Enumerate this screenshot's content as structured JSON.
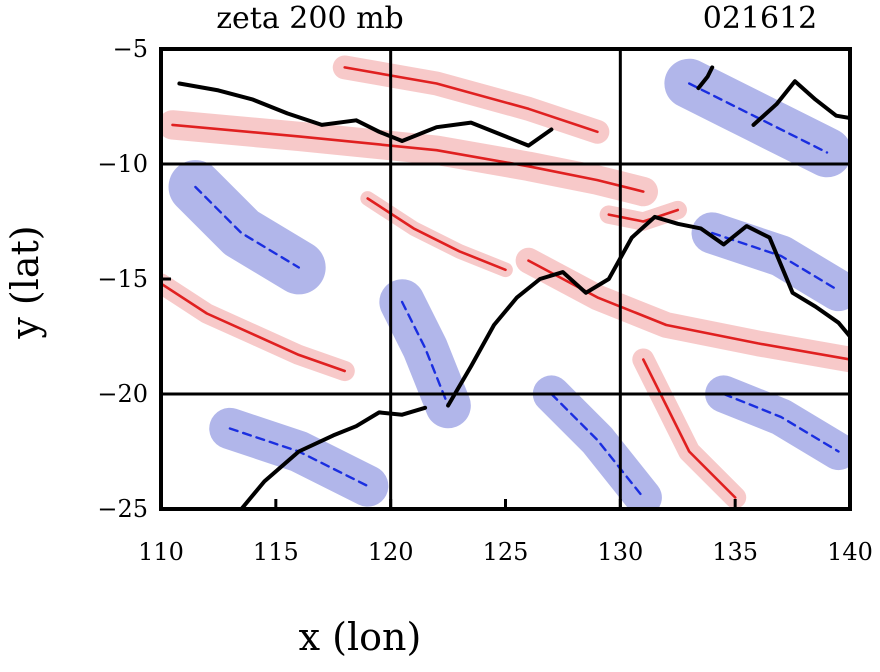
{
  "chart_data": {
    "type": "contour",
    "title": "zeta 200 mb",
    "date_label": "021612",
    "xlabel": "x (lon)",
    "ylabel": "y (lat)",
    "xlim": [
      110,
      140
    ],
    "ylim": [
      -25,
      -5
    ],
    "xticks": [
      110,
      115,
      120,
      125,
      130,
      135,
      140
    ],
    "yticks": [
      -5,
      -10,
      -15,
      -20,
      -25
    ],
    "xtick_labels": [
      "110",
      "115",
      "120",
      "125",
      "130",
      "135",
      "140"
    ],
    "ytick_labels": [
      "−5",
      "−10",
      "−15",
      "−20",
      "−25"
    ],
    "gridlines_lon": [
      120,
      130
    ],
    "gridlines_lat": [
      -10,
      -20
    ],
    "colors": {
      "positive_fill": "#f7c6c6",
      "positive_line": "#e02020",
      "negative_fill": "#aab0e8",
      "negative_line": "#1a2ee0",
      "coastline": "#000000",
      "grid": "#000000"
    },
    "positive_features": [
      {
        "name": "northern-positive-band",
        "lon": [
          110.5,
          116,
          122,
          126,
          129,
          131
        ],
        "lat": [
          -8.3,
          -8.8,
          -9.4,
          -10.1,
          -10.7,
          -11.2
        ],
        "width": 1.6
      },
      {
        "name": "upper-positive-band",
        "lon": [
          118,
          122,
          126,
          129
        ],
        "lat": [
          -5.8,
          -6.5,
          -7.6,
          -8.6
        ],
        "width": 1.3
      },
      {
        "name": "western-positive-band",
        "lon": [
          110,
          112,
          114,
          116,
          118
        ],
        "lat": [
          -15.2,
          -16.5,
          -17.4,
          -18.3,
          -19.0
        ],
        "width": 1.1
      },
      {
        "name": "diagonal-positive-band",
        "lon": [
          119,
          121,
          123,
          125
        ],
        "lat": [
          -11.5,
          -12.8,
          -13.8,
          -14.6
        ],
        "width": 0.8
      },
      {
        "name": "main-positive-band",
        "lon": [
          126,
          129,
          132,
          136,
          140
        ],
        "lat": [
          -14.2,
          -15.8,
          -17.0,
          -17.8,
          -18.5
        ],
        "width": 1.4
      },
      {
        "name": "southern-positive-band",
        "lon": [
          131,
          132,
          133,
          135
        ],
        "lat": [
          -18.5,
          -20.5,
          -22.5,
          -24.5
        ],
        "width": 1.2
      },
      {
        "name": "eddy-positive-core",
        "lon": [
          129.5,
          131,
          132.5
        ],
        "lat": [
          -12.2,
          -12.5,
          -12.0
        ],
        "width": 1.0
      }
    ],
    "negative_features": [
      {
        "name": "central-negative-region",
        "lon": [
          120.5,
          121.5,
          122.5
        ],
        "lat": [
          -16,
          -18,
          -20.5
        ],
        "width": 2.2
      },
      {
        "name": "western-negative-region",
        "lon": [
          111.5,
          113.5,
          116
        ],
        "lat": [
          -11,
          -13,
          -14.5
        ],
        "width": 2.6
      },
      {
        "name": "southwest-negative-region",
        "lon": [
          113,
          116,
          119
        ],
        "lat": [
          -21.5,
          -22.5,
          -24
        ],
        "width": 2.0
      },
      {
        "name": "southeast-negative-region",
        "lon": [
          127,
          129,
          131
        ],
        "lat": [
          -20,
          -22,
          -24.5
        ],
        "width": 1.8
      },
      {
        "name": "northeast-negative-region",
        "lon": [
          133,
          136,
          139
        ],
        "lat": [
          -6.5,
          -8,
          -9.5
        ],
        "width": 2.4
      },
      {
        "name": "east-negative-region",
        "lon": [
          134,
          137,
          139.5
        ],
        "lat": [
          -13,
          -14,
          -15.5
        ],
        "width": 2.0
      },
      {
        "name": "southeast-far-negative-region",
        "lon": [
          134.5,
          137,
          139.5
        ],
        "lat": [
          -20,
          -21,
          -22.5
        ],
        "width": 1.8
      }
    ],
    "coastline_segments": [
      {
        "name": "northern-coastline",
        "lon": [
          110.8,
          112.5,
          114,
          115.5,
          117,
          118.5,
          119.5,
          120.5,
          122,
          123.5,
          125,
          126,
          127
        ],
        "lat": [
          -6.5,
          -6.8,
          -7.2,
          -7.8,
          -8.3,
          -8.1,
          -8.6,
          -9.0,
          -8.4,
          -8.2,
          -8.8,
          -9.2,
          -8.5
        ]
      },
      {
        "name": "eastern-coastline",
        "lon": [
          122.5,
          123.5,
          124.5,
          125.5,
          126.5,
          127.5,
          128.5,
          129.5,
          130.5,
          131.5,
          132.5,
          133.5,
          134.5,
          135.5,
          136.5,
          137.5,
          138.5,
          139.5,
          140
        ],
        "lat": [
          -20.5,
          -18.8,
          -17.0,
          -15.8,
          -15.0,
          -14.7,
          -15.6,
          -15.0,
          -13.2,
          -12.3,
          -12.6,
          -12.8,
          -13.5,
          -12.7,
          -13.2,
          -15.6,
          -16.2,
          -16.9,
          -17.5
        ]
      },
      {
        "name": "southern-coastline",
        "lon": [
          113.5,
          114.5,
          116,
          117.5,
          118.5,
          119.5,
          120.5,
          121.5
        ],
        "lat": [
          -25,
          -23.8,
          -22.5,
          -21.8,
          -21.4,
          -20.8,
          -20.9,
          -20.6
        ]
      },
      {
        "name": "northeast-island",
        "lon": [
          133.4,
          133.8,
          134.0
        ],
        "lat": [
          -6.7,
          -6.2,
          -5.8
        ]
      },
      {
        "name": "northeast-coastline",
        "lon": [
          135.8,
          136.8,
          137.6,
          138.5,
          139.4,
          140
        ],
        "lat": [
          -8.3,
          -7.4,
          -6.4,
          -7.2,
          -7.9,
          -8.0
        ]
      }
    ]
  }
}
